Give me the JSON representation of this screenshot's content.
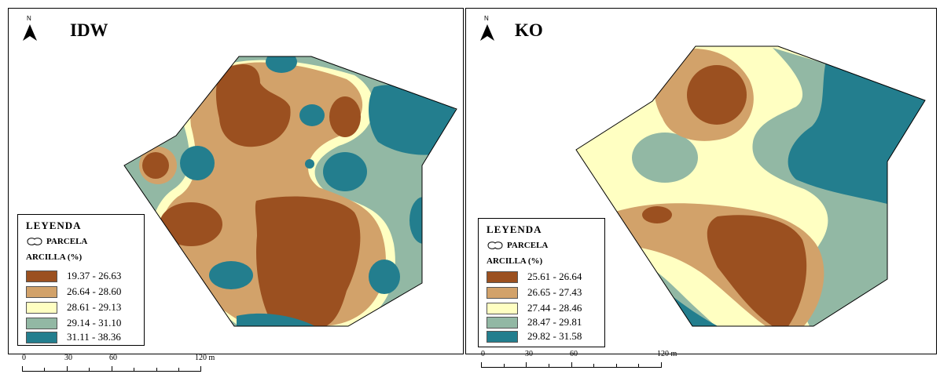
{
  "maps": [
    {
      "title": "IDW",
      "north": "N",
      "legend": {
        "title": "LEYENDA",
        "parcel": "PARCELA",
        "variable": "ARCILLA (%)",
        "classes": [
          {
            "label": "19.37 - 26.63",
            "color": "#9b5020"
          },
          {
            "label": "26.64 - 28.60",
            "color": "#d2a26a"
          },
          {
            "label": "28.61 - 29.13",
            "color": "#ffffc2"
          },
          {
            "label": "29.14 - 31.10",
            "color": "#92b8a4"
          },
          {
            "label": "31.11 - 38.36",
            "color": "#237e8e"
          }
        ]
      },
      "scale": {
        "ticks": [
          "0",
          "30",
          "60",
          "120 m"
        ]
      }
    },
    {
      "title": "KO",
      "north": "N",
      "legend": {
        "title": "LEYENDA",
        "parcel": "PARCELA",
        "variable": "ARCILLA (%)",
        "classes": [
          {
            "label": "25.61 - 26.64",
            "color": "#9b5020"
          },
          {
            "label": "26.65 - 27.43",
            "color": "#d2a26a"
          },
          {
            "label": "27.44 - 28.46",
            "color": "#ffffc2"
          },
          {
            "label": "28.47 - 29.81",
            "color": "#92b8a4"
          },
          {
            "label": "29.82 - 31.58",
            "color": "#237e8e"
          }
        ]
      },
      "scale": {
        "ticks": [
          "0",
          "30",
          "60",
          "120 m"
        ]
      }
    }
  ]
}
